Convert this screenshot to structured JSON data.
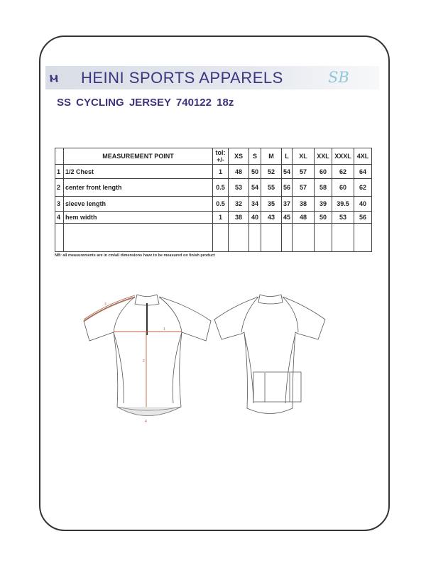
{
  "header": {
    "company": "HEINI SPORTS APPARELS",
    "logo_mark": "ⲙ",
    "monogram": "SB"
  },
  "document": {
    "title": "SS CYCLING  JERSEY  740122  18z"
  },
  "table": {
    "columns": [
      "MEASUREMENT POINT",
      "tol: +/-",
      "XS",
      "S",
      "M",
      "L",
      "XL",
      "XXL",
      "XXXL",
      "4XL"
    ],
    "rows": [
      {
        "num": "1",
        "point": "1/2 Chest",
        "tol": "1",
        "values": [
          "48",
          "50",
          "52",
          "54",
          "57",
          "60",
          "62",
          "64"
        ]
      },
      {
        "num": "2",
        "point": "center front length",
        "tol": "0.5",
        "values": [
          "53",
          "54",
          "55",
          "56",
          "57",
          "58",
          "60",
          "62"
        ]
      },
      {
        "num": "3",
        "point": "sleeve length",
        "tol": "0.5",
        "values": [
          "32",
          "34",
          "35",
          "37",
          "38",
          "39",
          "39.5",
          "40"
        ]
      },
      {
        "num": "4",
        "point": "hem width",
        "tol": "1",
        "values": [
          "38",
          "40",
          "43",
          "45",
          "48",
          "50",
          "53",
          "56"
        ]
      }
    ],
    "note": "NB:  all measurements are in cm/all dimensions have to be measured on finish product"
  },
  "diagram": {
    "labels": [
      "1",
      "2",
      "3",
      "4"
    ],
    "measure_color": "#c0603a"
  }
}
